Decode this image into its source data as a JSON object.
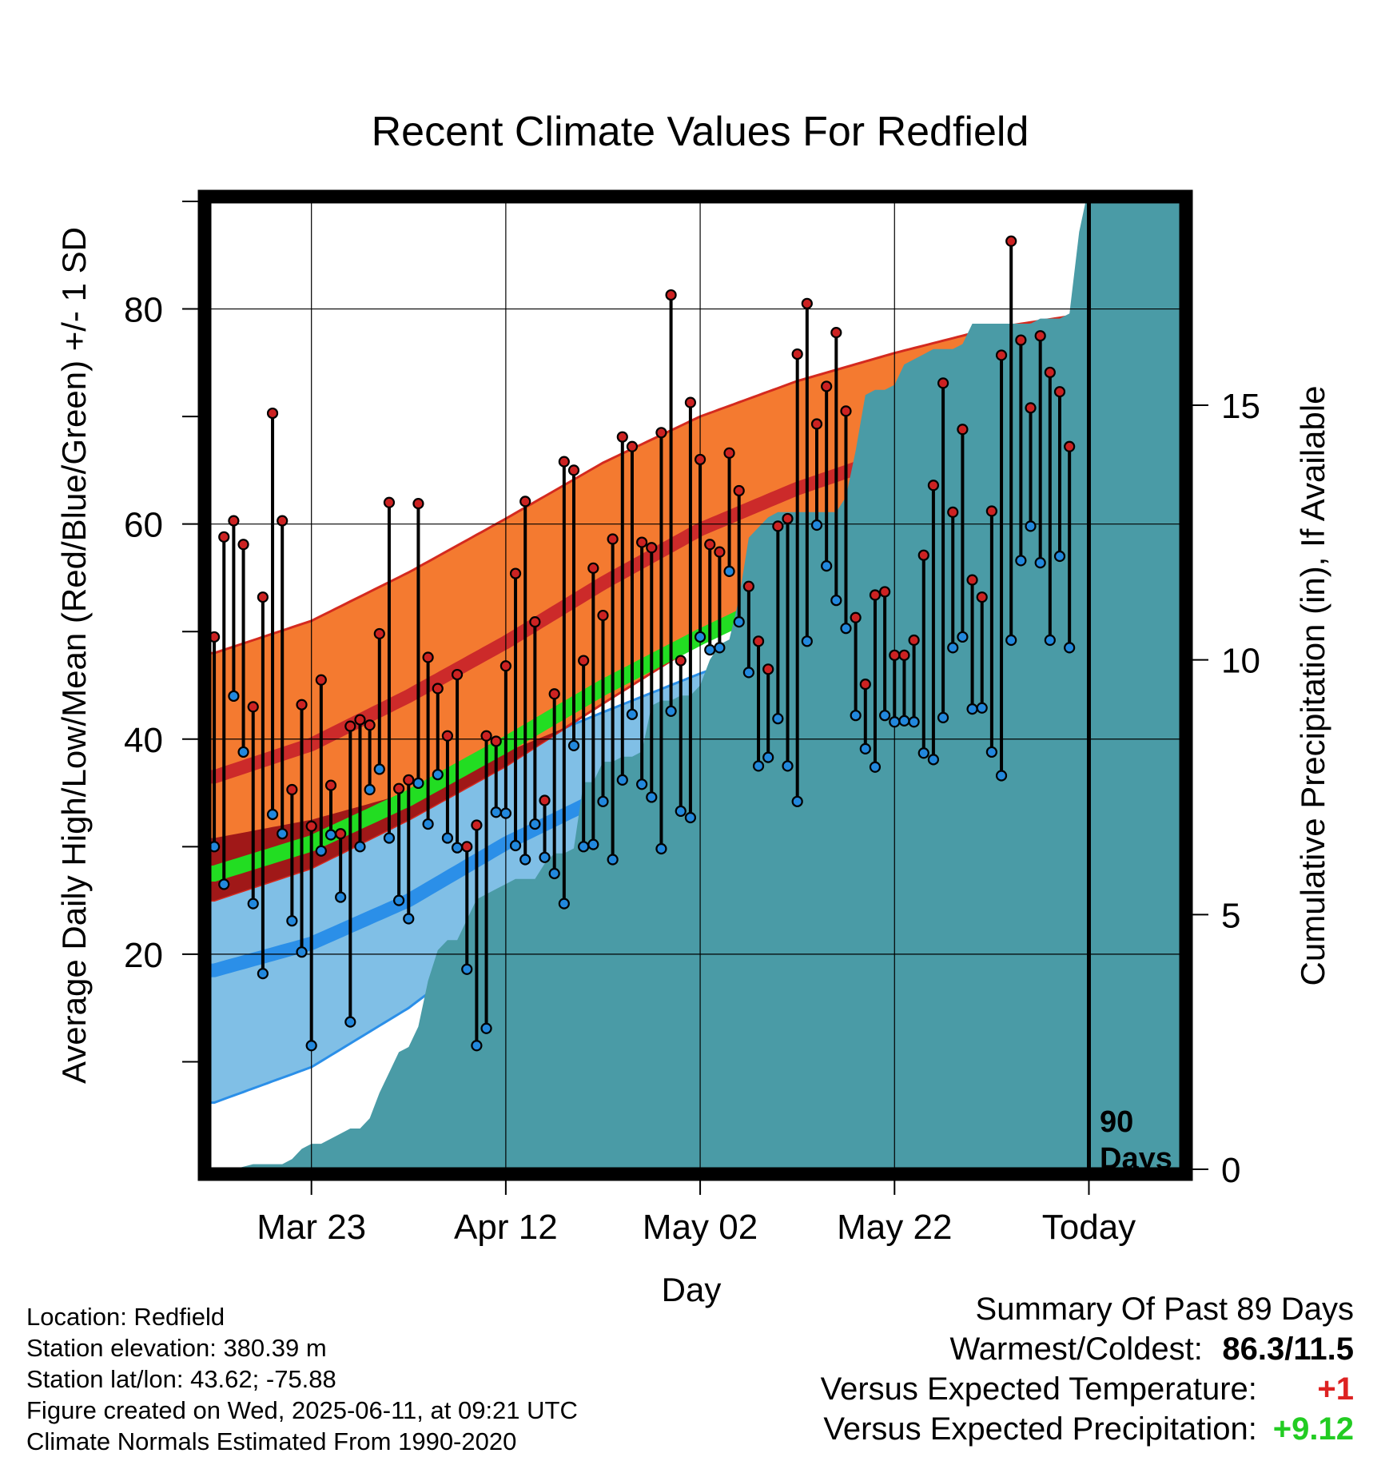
{
  "chart_data": {
    "type": "line",
    "title": "Recent Climate Values For Redfield",
    "xlabel": "Day",
    "ylabel_left": "Average Daily High/Low/Mean (Red/Blue/Green) +/- 1 SD",
    "ylabel_right": "Cumulative Precipitation (in), If Available",
    "x_tick_labels": [
      "Mar 23",
      "Apr 12",
      "May 02",
      "May 22",
      "Today"
    ],
    "x_tick_days": [
      10,
      30,
      50,
      70,
      90
    ],
    "ylim_left": [
      0,
      90
    ],
    "yticks_left": [
      20,
      40,
      60,
      80
    ],
    "ylim_right": [
      0,
      19
    ],
    "yticks_right": [
      0,
      5,
      10,
      15
    ],
    "x_range_days": [
      -0.5,
      99.5
    ],
    "today_marker": {
      "day": 90,
      "label_line1": "90",
      "label_line2": "Days"
    },
    "normals": {
      "days": [
        0,
        10,
        20,
        30,
        40,
        50,
        60,
        70,
        80,
        90,
        99.5
      ],
      "high_mean": [
        36.5,
        39.5,
        44,
        49,
        54.5,
        59.5,
        63.3,
        66.4,
        69.4,
        71.6,
        73.8
      ],
      "high_sd": [
        11.5,
        11.5,
        11.5,
        11.5,
        11.2,
        10.5,
        10,
        9.5,
        8.8,
        8,
        7.2
      ],
      "low_mean": [
        18.5,
        21,
        25,
        30.3,
        34.7,
        38.8,
        42.3,
        45.5,
        48.5,
        51.9,
        54.5
      ],
      "low_sd": [
        12.3,
        11.5,
        10,
        8.5,
        7.8,
        7.3,
        7,
        6.8,
        6.7,
        6.6,
        6.5
      ],
      "avg_mean": [
        27.5,
        30.3,
        34.5,
        39.5,
        44.8,
        49.5,
        53.8,
        57,
        60.2,
        62.5,
        64.2
      ]
    },
    "series": [
      {
        "name": "High",
        "color": "#cc2222",
        "values": [
          49.5,
          58.8,
          60.3,
          58.1,
          43,
          53.2,
          70.3,
          60.3,
          35.3,
          43.2,
          31.9,
          45.5,
          35.7,
          31.2,
          41.2,
          41.8,
          41.3,
          49.8,
          62,
          35.4,
          36.2,
          61.9,
          47.6,
          44.7,
          40.3,
          46,
          30,
          32,
          40.3,
          39.8,
          46.8,
          55.4,
          62.1,
          50.9,
          34.3,
          44.2,
          65.8,
          65,
          47.3,
          55.9,
          51.5,
          58.6,
          68.1,
          67.2,
          58.3,
          57.8,
          68.5,
          81.3,
          47.3,
          71.3,
          66,
          58.1,
          57.4,
          66.6,
          63.1,
          54.2,
          49.1,
          46.5,
          59.8,
          60.5,
          75.8,
          80.5,
          69.3,
          72.8,
          77.8,
          70.5,
          51.3,
          45.1,
          53.4,
          53.7,
          47.8,
          47.8,
          49.2,
          57.1,
          63.6,
          73.1,
          61.1,
          68.8,
          54.8,
          53.2,
          61.2,
          75.7,
          86.3,
          77.1,
          70.8,
          77.5,
          74.1,
          72.3,
          67.2
        ]
      },
      {
        "name": "Low",
        "color": "#2288dd",
        "values": [
          30,
          26.5,
          44,
          38.8,
          24.7,
          18.2,
          33,
          31.2,
          23.1,
          20.2,
          11.5,
          29.6,
          31.1,
          25.3,
          13.7,
          30,
          35.3,
          37.2,
          30.8,
          25,
          23.3,
          35.9,
          32.1,
          36.7,
          30.8,
          29.9,
          18.6,
          11.5,
          13.1,
          33.2,
          33.1,
          30.1,
          28.8,
          32.1,
          29,
          27.5,
          24.7,
          39.4,
          30,
          30.2,
          34.2,
          28.8,
          36.2,
          42.3,
          35.8,
          34.6,
          29.8,
          42.6,
          33.3,
          32.7,
          49.5,
          48.3,
          48.5,
          55.6,
          50.9,
          46.2,
          37.5,
          38.3,
          41.9,
          37.5,
          34.2,
          49.1,
          59.9,
          56.1,
          52.9,
          50.3,
          42.2,
          39.1,
          37.4,
          42.2,
          41.6,
          41.7,
          41.6,
          38.7,
          38.1,
          42,
          48.5,
          49.5,
          42.8,
          42.9,
          38.8,
          36.6,
          49.2,
          56.6,
          59.8,
          56.4,
          49.2,
          57,
          48.5
        ]
      },
      {
        "name": "Precipitation",
        "color": "#4a9ba6",
        "cumulative": [
          0,
          0,
          0,
          0.05,
          0.1,
          0.1,
          0.1,
          0.1,
          0.2,
          0.4,
          0.5,
          0.5,
          0.6,
          0.7,
          0.8,
          0.8,
          1,
          1.5,
          1.9,
          2.3,
          2.4,
          2.8,
          3.7,
          4.3,
          4.5,
          4.5,
          4.9,
          5.3,
          5.4,
          5.5,
          5.6,
          5.7,
          5.7,
          5.7,
          6,
          6.2,
          6.2,
          6.3,
          7.6,
          7.6,
          8,
          8,
          8.1,
          8.1,
          8.2,
          9.1,
          9.2,
          9.2,
          9.3,
          9.3,
          9.5,
          10,
          10.3,
          10.4,
          11.2,
          12.4,
          12.6,
          12.8,
          12.9,
          12.9,
          12.9,
          12.9,
          12.9,
          12.9,
          12.9,
          13.2,
          14.1,
          15.2,
          15.3,
          15.3,
          15.4,
          15.8,
          15.9,
          16,
          16.1,
          16.1,
          16.1,
          16.2,
          16.6,
          16.6,
          16.6,
          16.6,
          16.6,
          16.6,
          16.6,
          16.7,
          16.7,
          16.7,
          16.8,
          18.4,
          19.3,
          19.3,
          19.3,
          19.3,
          19.3,
          19.3,
          19.3,
          19.3,
          19.3,
          19.3
        ]
      }
    ]
  },
  "footer": {
    "location": "Location: Redfield",
    "elevation": "Station elevation: 380.39 m",
    "latlon": "Station lat/lon: 43.62; -75.88",
    "created": "Figure created on Wed, 2025-06-11, at 09:21 UTC",
    "normals": "Climate Normals Estimated From 1990-2020"
  },
  "summary": {
    "heading": "Summary Of Past 89 Days",
    "warmest_label": "Warmest/Coldest:",
    "warmest_value": "86.3/11.5",
    "temp_label": "Versus Expected Temperature:",
    "temp_value": "+1",
    "temp_color": "#dd2222",
    "precip_label": "Versus Expected Precipitation:",
    "precip_value": "+9.12",
    "precip_color": "#22cc22"
  }
}
